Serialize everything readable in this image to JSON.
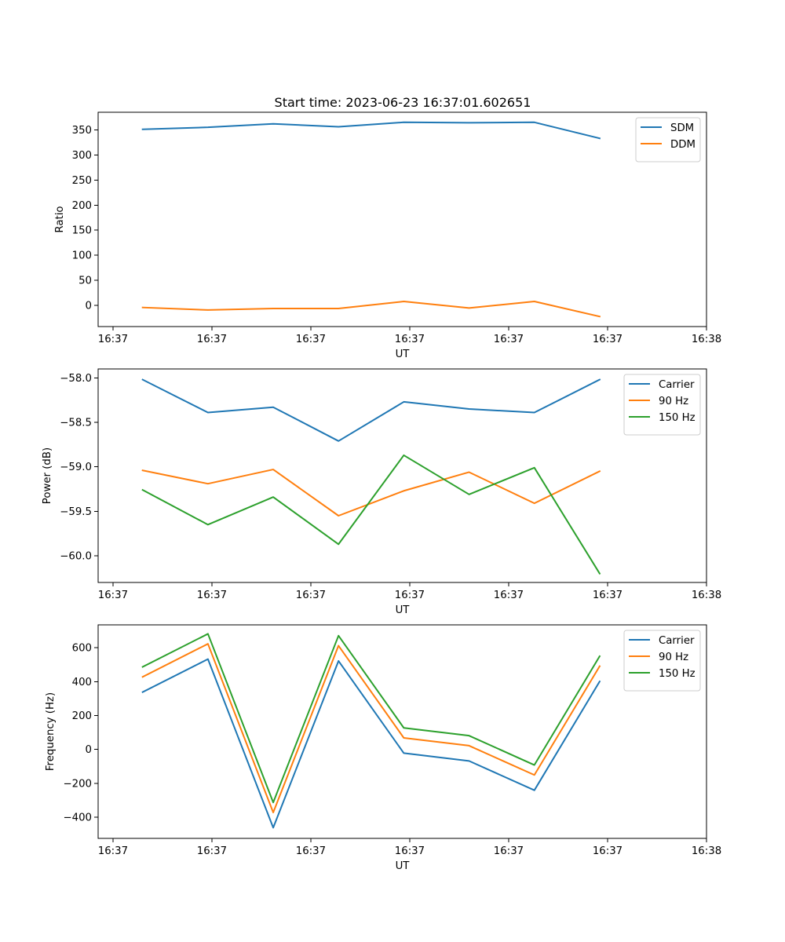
{
  "figure_title": "Start time: 2023-06-23 16:37:01.602651",
  "chart_data": [
    {
      "type": "line",
      "title": "Start time: 2023-06-23 16:37:01.602651",
      "xlabel": "UT",
      "ylabel": "Ratio",
      "xlim": [
        -0.45,
        5.7
      ],
      "ylim": [
        -42,
        385
      ],
      "x": [
        0.0,
        0.66,
        1.32,
        1.98,
        2.64,
        3.3,
        3.96,
        4.62
      ],
      "xticks": [
        -0.3,
        0.7,
        1.7,
        2.7,
        3.7,
        4.7,
        5.7
      ],
      "xtick_labels": [
        "16:37",
        "16:37",
        "16:37",
        "16:37",
        "16:37",
        "16:37",
        "16:38"
      ],
      "yticks": [
        0,
        50,
        100,
        150,
        200,
        250,
        300,
        350
      ],
      "ytick_labels": [
        "0",
        "50",
        "100",
        "150",
        "200",
        "250",
        "300",
        "350"
      ],
      "legend_position": "top-right",
      "series": [
        {
          "name": "SDM",
          "color": "#1f77b4",
          "values": [
            351,
            355,
            362,
            356,
            365,
            364,
            365,
            333
          ]
        },
        {
          "name": "DDM",
          "color": "#ff7f0e",
          "values": [
            -4,
            -9,
            -6,
            -6,
            8,
            -5,
            8,
            -22
          ]
        }
      ]
    },
    {
      "type": "line",
      "title": "",
      "xlabel": "UT",
      "ylabel": "Power (dB)",
      "xlim": [
        -0.45,
        5.7
      ],
      "ylim": [
        -60.3,
        -57.9
      ],
      "x": [
        0.0,
        0.66,
        1.32,
        1.98,
        2.64,
        3.3,
        3.96,
        4.62
      ],
      "xticks": [
        -0.3,
        0.7,
        1.7,
        2.7,
        3.7,
        4.7,
        5.7
      ],
      "xtick_labels": [
        "16:37",
        "16:37",
        "16:37",
        "16:37",
        "16:37",
        "16:37",
        "16:38"
      ],
      "yticks": [
        -58.0,
        -58.5,
        -59.0,
        -59.5,
        -60.0
      ],
      "ytick_labels": [
        "−58.0",
        "−58.5",
        "−59.0",
        "−59.5",
        "−60.0"
      ],
      "legend_position": "top-right",
      "series": [
        {
          "name": "Carrier",
          "color": "#1f77b4",
          "values": [
            -58.02,
            -58.39,
            -58.33,
            -58.71,
            -58.27,
            -58.35,
            -58.39,
            -58.02
          ]
        },
        {
          "name": "90 Hz",
          "color": "#ff7f0e",
          "values": [
            -59.04,
            -59.19,
            -59.03,
            -59.55,
            -59.27,
            -59.06,
            -59.41,
            -59.05
          ]
        },
        {
          "name": "150 Hz",
          "color": "#2ca02c",
          "values": [
            -59.26,
            -59.65,
            -59.34,
            -59.87,
            -58.87,
            -59.31,
            -59.01,
            -60.2
          ]
        }
      ]
    },
    {
      "type": "line",
      "title": "",
      "xlabel": "UT",
      "ylabel": "Frequency (Hz)",
      "xlim": [
        -0.45,
        5.7
      ],
      "ylim": [
        -525,
        735
      ],
      "x": [
        0.0,
        0.66,
        1.32,
        1.98,
        2.64,
        3.3,
        3.96,
        4.62
      ],
      "xticks": [
        -0.3,
        0.7,
        1.7,
        2.7,
        3.7,
        4.7,
        5.7
      ],
      "xtick_labels": [
        "16:37",
        "16:37",
        "16:37",
        "16:37",
        "16:37",
        "16:37",
        "16:38"
      ],
      "yticks": [
        -400,
        -200,
        0,
        200,
        400,
        600
      ],
      "ytick_labels": [
        "−400",
        "−200",
        "0",
        "200",
        "400",
        "600"
      ],
      "legend_position": "top-right",
      "series": [
        {
          "name": "Carrier",
          "color": "#1f77b4",
          "values": [
            338,
            533,
            -462,
            522,
            -22,
            -68,
            -241,
            401
          ]
        },
        {
          "name": "90 Hz",
          "color": "#ff7f0e",
          "values": [
            428,
            623,
            -372,
            612,
            68,
            22,
            -151,
            491
          ]
        },
        {
          "name": "150 Hz",
          "color": "#2ca02c",
          "values": [
            487,
            682,
            -313,
            671,
            127,
            81,
            -92,
            550
          ]
        }
      ]
    }
  ]
}
